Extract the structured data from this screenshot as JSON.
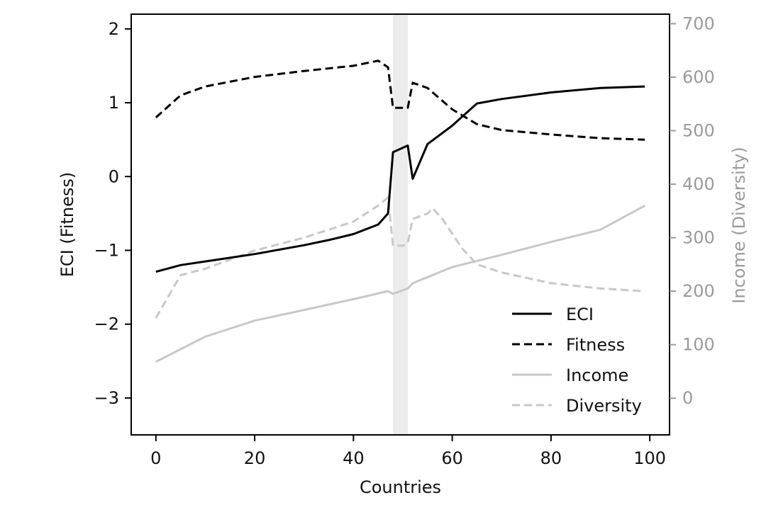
{
  "chart_data": {
    "type": "line",
    "xlabel": "Countries",
    "ylabel": "ECI (Fitness)",
    "y2label": "Income (Diversity)",
    "xlim": [
      -5,
      104
    ],
    "ylim": [
      -3.5,
      2.2
    ],
    "y2lim": [
      -68.6,
      717.8
    ],
    "xticks": [
      0,
      20,
      40,
      60,
      80,
      100
    ],
    "yticks": [
      2,
      1,
      0,
      -1,
      -2,
      -3
    ],
    "ytick_labels": [
      "2",
      "1",
      "0",
      "−1",
      "−2",
      "−3"
    ],
    "y2ticks": [
      700,
      600,
      500,
      400,
      300,
      200,
      100,
      0
    ],
    "highlight_band": [
      48,
      51
    ],
    "grid": false,
    "legend_position": "lower-right",
    "colors": {
      "dark": "#000000",
      "light": "#c8c8c8",
      "axis2": "#9a9a9a",
      "band": "#ececec"
    },
    "series": [
      {
        "name": "ECI",
        "axis": "left",
        "style": "solid",
        "color": "#000000",
        "x": [
          0,
          5,
          10,
          20,
          30,
          35,
          40,
          45,
          47,
          48,
          51,
          52,
          55,
          60,
          65,
          70,
          80,
          90,
          99
        ],
        "y": [
          -1.29,
          -1.2,
          -1.15,
          -1.05,
          -0.93,
          -0.86,
          -0.78,
          -0.65,
          -0.5,
          0.33,
          0.42,
          -0.03,
          0.44,
          0.69,
          0.99,
          1.05,
          1.14,
          1.2,
          1.22
        ]
      },
      {
        "name": "Fitness",
        "axis": "left",
        "style": "dashed",
        "color": "#000000",
        "x": [
          0,
          5,
          10,
          20,
          30,
          40,
          45,
          47,
          48,
          51,
          52,
          55,
          60,
          65,
          70,
          80,
          90,
          99
        ],
        "y": [
          0.8,
          1.1,
          1.22,
          1.35,
          1.43,
          1.5,
          1.57,
          1.48,
          0.93,
          0.93,
          1.27,
          1.2,
          0.91,
          0.71,
          0.63,
          0.57,
          0.52,
          0.5
        ]
      },
      {
        "name": "Income",
        "axis": "right",
        "style": "solid",
        "color": "#c8c8c8",
        "x": [
          0,
          10,
          20,
          30,
          40,
          47,
          48,
          51,
          52,
          60,
          70,
          80,
          90,
          99
        ],
        "y": [
          68,
          115,
          145,
          165,
          185,
          200,
          195,
          205,
          215,
          245,
          268,
          292,
          315,
          360
        ]
      },
      {
        "name": "Diversity",
        "axis": "right",
        "style": "dashed",
        "color": "#c8c8c8",
        "x": [
          0,
          5,
          10,
          20,
          30,
          40,
          45,
          47,
          48,
          50,
          51,
          52,
          55,
          56,
          58,
          62,
          65,
          70,
          80,
          90,
          99
        ],
        "y": [
          150,
          230,
          242,
          276,
          300,
          330,
          360,
          375,
          285,
          285,
          290,
          335,
          345,
          355,
          335,
          280,
          250,
          235,
          215,
          205,
          200
        ]
      }
    ]
  }
}
